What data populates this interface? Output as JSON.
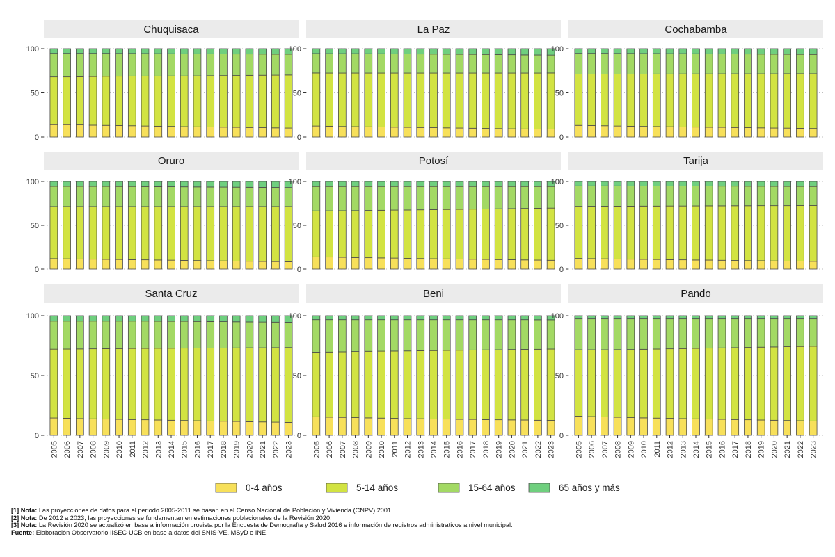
{
  "chart_data": {
    "type": "bar",
    "stacked": true,
    "categories": [
      "2005",
      "2006",
      "2007",
      "2008",
      "2009",
      "2010",
      "2011",
      "2012",
      "2013",
      "2014",
      "2015",
      "2016",
      "2017",
      "2018",
      "2019",
      "2020",
      "2021",
      "2022",
      "2023"
    ],
    "ylim": [
      0,
      100
    ],
    "yticks": [
      "0",
      "50",
      "100"
    ],
    "grid": false,
    "legend_position": "bottom",
    "series_names": [
      "0-4 años",
      "5-14 años",
      "15-64 años",
      "65 años y más"
    ],
    "series_colors": [
      "#f7e05a",
      "#d2e342",
      "#a3d964",
      "#6fcf7e"
    ],
    "facets": [
      {
        "name": "Chuquisaca",
        "series": [
          [
            14,
            14,
            13.7,
            13.4,
            13.2,
            13,
            12.8,
            12.5,
            12.3,
            12.1,
            11.8,
            11.6,
            11.4,
            11.2,
            11,
            10.8,
            10.6,
            10.4,
            10.2
          ],
          [
            54,
            54,
            54.5,
            55,
            55.5,
            55.8,
            56.2,
            56.5,
            56.7,
            57,
            57.3,
            57.6,
            58,
            58.3,
            58.6,
            59,
            59.3,
            59.6,
            60
          ],
          [
            26.7,
            26.7,
            26.5,
            26.3,
            26,
            25.8,
            25.6,
            25.5,
            25.4,
            25.2,
            25.1,
            25,
            24.8,
            24.6,
            24.4,
            24.2,
            24,
            23.8,
            23.6
          ],
          [
            5.3,
            5.3,
            5.3,
            5.3,
            5.3,
            5.4,
            5.4,
            5.5,
            5.6,
            5.7,
            5.8,
            5.8,
            5.8,
            5.9,
            6,
            6,
            6.1,
            6.2,
            6.2
          ]
        ]
      },
      {
        "name": "La Paz",
        "series": [
          [
            12.5,
            12.3,
            12,
            11.8,
            11.6,
            11.4,
            11.2,
            11,
            10.8,
            10.6,
            10.4,
            10.2,
            10,
            9.8,
            9.6,
            9.4,
            9.2,
            9.1,
            9
          ],
          [
            60,
            60.1,
            60.4,
            60.6,
            60.8,
            61,
            61.2,
            61.4,
            61.6,
            61.8,
            62,
            62.2,
            62.4,
            62.6,
            62.8,
            63,
            63.2,
            63.3,
            63.5
          ],
          [
            22,
            22,
            22,
            22,
            21.9,
            21.9,
            21.8,
            21.7,
            21.6,
            21.5,
            21.4,
            21.3,
            21.2,
            21.1,
            21,
            20.8,
            20.6,
            20.5,
            20.3
          ],
          [
            5.5,
            5.6,
            5.6,
            5.6,
            5.7,
            5.7,
            5.8,
            5.9,
            6,
            6.1,
            6.2,
            6.3,
            6.4,
            6.5,
            6.6,
            6.8,
            7,
            7.1,
            7.2
          ]
        ]
      },
      {
        "name": "Cochabamba",
        "series": [
          [
            13.2,
            13,
            12.8,
            12.5,
            12.3,
            12.1,
            11.9,
            11.7,
            11.5,
            11.3,
            11.1,
            11,
            10.8,
            10.6,
            10.4,
            10.2,
            10.1,
            9.9,
            9.7
          ],
          [
            58,
            58.3,
            58.5,
            58.8,
            59,
            59.2,
            59.5,
            59.7,
            60,
            60.2,
            60.4,
            60.6,
            60.8,
            61,
            61.2,
            61.4,
            61.6,
            61.8,
            62
          ],
          [
            23.5,
            23.4,
            23.4,
            23.3,
            23.3,
            23.2,
            23.1,
            23,
            22.9,
            22.8,
            22.7,
            22.6,
            22.5,
            22.4,
            22.3,
            22.2,
            22,
            21.9,
            21.8
          ],
          [
            5.3,
            5.3,
            5.3,
            5.4,
            5.4,
            5.5,
            5.5,
            5.6,
            5.6,
            5.7,
            5.8,
            5.8,
            5.9,
            6,
            6.1,
            6.2,
            6.3,
            6.4,
            6.5
          ]
        ]
      },
      {
        "name": "Oruro",
        "series": [
          [
            12,
            11.8,
            11.6,
            11.4,
            11.2,
            11,
            10.8,
            10.6,
            10.4,
            10.2,
            10,
            9.8,
            9.6,
            9.4,
            9.2,
            9,
            8.8,
            8.6,
            8.4
          ],
          [
            59.5,
            59.7,
            59.9,
            60.1,
            60.3,
            60.5,
            60.7,
            60.9,
            61.1,
            61.3,
            61.5,
            61.7,
            61.9,
            62.1,
            62.3,
            62.5,
            62.7,
            62.9,
            63.1
          ],
          [
            23,
            23,
            23,
            22.9,
            22.9,
            22.8,
            22.8,
            22.7,
            22.6,
            22.5,
            22.4,
            22.3,
            22.2,
            22.1,
            22,
            21.9,
            21.8,
            21.7,
            21.6
          ],
          [
            5.5,
            5.5,
            5.5,
            5.6,
            5.6,
            5.7,
            5.7,
            5.8,
            5.9,
            6,
            6.1,
            6.2,
            6.3,
            6.4,
            6.5,
            6.6,
            6.7,
            6.8,
            6.9
          ]
        ]
      },
      {
        "name": "Potosí",
        "series": [
          [
            14,
            13.8,
            13.5,
            13.2,
            13,
            12.8,
            12.6,
            12.3,
            12.1,
            11.9,
            11.7,
            11.5,
            11.3,
            11.1,
            10.9,
            10.7,
            10.5,
            10.3,
            10.1
          ],
          [
            52.5,
            52.8,
            53.2,
            53.6,
            54,
            54.4,
            54.8,
            55.2,
            55.6,
            56,
            56.4,
            56.8,
            57.2,
            57.6,
            58,
            58.4,
            58.8,
            59.2,
            59.6
          ],
          [
            27.8,
            27.7,
            27.6,
            27.5,
            27.3,
            27.1,
            26.9,
            26.8,
            26.6,
            26.4,
            26.2,
            26,
            25.8,
            25.6,
            25.4,
            25.2,
            25,
            24.8,
            24.6
          ],
          [
            5.7,
            5.7,
            5.7,
            5.7,
            5.7,
            5.7,
            5.7,
            5.7,
            5.7,
            5.7,
            5.7,
            5.7,
            5.7,
            5.7,
            5.7,
            5.7,
            5.7,
            5.7,
            5.7
          ]
        ]
      },
      {
        "name": "Tarija",
        "series": [
          [
            12.2,
            12,
            11.8,
            11.6,
            11.4,
            11.2,
            11,
            10.8,
            10.6,
            10.4,
            10.3,
            10.1,
            9.9,
            9.7,
            9.6,
            9.4,
            9.2,
            9.1,
            8.9
          ],
          [
            59.5,
            59.8,
            60,
            60.3,
            60.5,
            60.8,
            61,
            61.3,
            61.5,
            61.8,
            62,
            62.2,
            62.5,
            62.7,
            62.9,
            63.1,
            63.3,
            63.5,
            63.7
          ],
          [
            23.3,
            23.2,
            23.2,
            23.1,
            23,
            22.9,
            22.9,
            22.8,
            22.7,
            22.6,
            22.5,
            22.4,
            22.3,
            22.2,
            22.1,
            22,
            21.9,
            21.8,
            21.7
          ],
          [
            5,
            5,
            5,
            5,
            5.1,
            5.1,
            5.1,
            5.1,
            5.2,
            5.2,
            5.2,
            5.3,
            5.3,
            5.4,
            5.4,
            5.5,
            5.6,
            5.6,
            5.7
          ]
        ]
      },
      {
        "name": "Santa Cruz",
        "series": [
          [
            14.5,
            14.3,
            14,
            13.8,
            13.6,
            13.4,
            13.2,
            13,
            12.8,
            12.6,
            12.4,
            12.2,
            12,
            11.8,
            11.6,
            11.4,
            11.2,
            11,
            10.8
          ],
          [
            57.5,
            57.8,
            58.2,
            58.5,
            58.8,
            59.1,
            59.4,
            59.7,
            60,
            60.2,
            60.5,
            60.8,
            61,
            61.2,
            61.5,
            61.8,
            62,
            62.3,
            62.6
          ],
          [
            23.5,
            23.4,
            23.3,
            23.2,
            23.1,
            23,
            22.9,
            22.8,
            22.6,
            22.5,
            22.4,
            22.2,
            22.1,
            22,
            21.8,
            21.6,
            21.5,
            21.3,
            21.1
          ],
          [
            4.5,
            4.5,
            4.5,
            4.5,
            4.5,
            4.5,
            4.5,
            4.5,
            4.6,
            4.7,
            4.7,
            4.8,
            4.9,
            5,
            5.1,
            5.2,
            5.3,
            5.4,
            5.5
          ]
        ]
      },
      {
        "name": "Beni",
        "series": [
          [
            15.5,
            15.2,
            15,
            14.8,
            14.6,
            14.4,
            14.2,
            14,
            13.9,
            13.7,
            13.6,
            13.4,
            13.3,
            13.1,
            13,
            12.9,
            12.8,
            12.6,
            12.5
          ],
          [
            54,
            54.4,
            54.8,
            55.2,
            55.6,
            55.9,
            56.2,
            56.5,
            56.8,
            57.1,
            57.4,
            57.7,
            58,
            58.3,
            58.5,
            58.8,
            59,
            59.3,
            59.6
          ],
          [
            27.2,
            27.1,
            26.9,
            26.7,
            26.5,
            26.4,
            26.3,
            26.2,
            26,
            25.9,
            25.7,
            25.6,
            25.4,
            25.3,
            25.2,
            25,
            24.9,
            24.7,
            24.5
          ],
          [
            3.3,
            3.3,
            3.3,
            3.3,
            3.3,
            3.3,
            3.3,
            3.3,
            3.3,
            3.3,
            3.3,
            3.3,
            3.3,
            3.3,
            3.3,
            3.3,
            3.3,
            3.4,
            3.4
          ]
        ]
      },
      {
        "name": "Pando",
        "series": [
          [
            16,
            15.7,
            15.4,
            15.1,
            14.8,
            14.6,
            14.4,
            14.2,
            14,
            13.8,
            13.6,
            13.4,
            13.2,
            13,
            12.8,
            12.6,
            12.4,
            12.2,
            12
          ],
          [
            55.5,
            55.8,
            56.1,
            56.5,
            56.9,
            57.3,
            57.7,
            58.1,
            58.5,
            58.9,
            59.3,
            59.7,
            60.1,
            60.5,
            60.9,
            61.3,
            61.7,
            62.1,
            62.5
          ],
          [
            25.8,
            25.8,
            25.8,
            25.7,
            25.6,
            25.4,
            25.2,
            25,
            24.8,
            24.6,
            24.4,
            24.2,
            24,
            23.8,
            23.6,
            23.4,
            23.2,
            23,
            22.8
          ],
          [
            2.7,
            2.7,
            2.7,
            2.7,
            2.7,
            2.7,
            2.7,
            2.7,
            2.7,
            2.7,
            2.7,
            2.7,
            2.7,
            2.7,
            2.7,
            2.7,
            2.7,
            2.7,
            2.7
          ]
        ]
      }
    ]
  },
  "notes": [
    {
      "label": "[1] Nota:",
      "text": " Las proyecciones de datos para el periodo 2005-2011 se basan en el Censo Nacional de Población y Vivienda (CNPV) 2001."
    },
    {
      "label": "[2] Nota:",
      "text": " De 2012 a 2023, las proyecciones se fundamentan en estimaciones poblacionales de la Revisión 2020."
    },
    {
      "label": "[3] Nota:",
      "text": " La Revisión 2020 se actualizó en base a información provista por la Encuesta de Demografía y Salud 2016 e información de registros administrativos a nivel municipal."
    },
    {
      "label": "Fuente:",
      "text": " Elaboración Observatorio IISEC-UCB en base a datos del SNIS-VE, MSyD e INE."
    }
  ]
}
